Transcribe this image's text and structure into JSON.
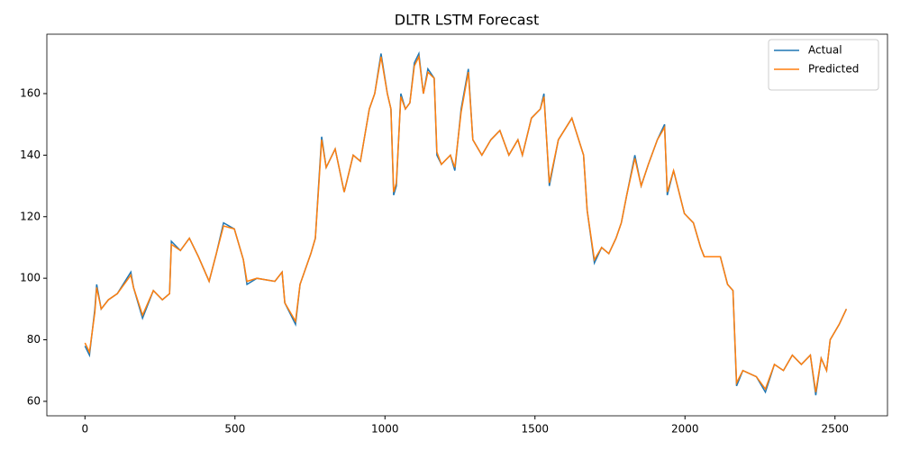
{
  "chart_data": {
    "type": "line",
    "title": "DLTR LSTM Forecast",
    "x": [
      0,
      15,
      33,
      39,
      54,
      78,
      108,
      153,
      162,
      192,
      228,
      258,
      282,
      288,
      318,
      348,
      378,
      414,
      438,
      462,
      498,
      528,
      540,
      573,
      633,
      657,
      666,
      702,
      717,
      753,
      768,
      780,
      789,
      804,
      834,
      864,
      894,
      918,
      948,
      966,
      987,
      1008,
      1020,
      1029,
      1038,
      1053,
      1068,
      1083,
      1098,
      1113,
      1128,
      1143,
      1164,
      1173,
      1188,
      1218,
      1233,
      1254,
      1278,
      1293,
      1323,
      1353,
      1383,
      1413,
      1443,
      1458,
      1488,
      1518,
      1530,
      1548,
      1578,
      1623,
      1662,
      1674,
      1698,
      1722,
      1746,
      1770,
      1788,
      1806,
      1833,
      1854,
      1878,
      1908,
      1932,
      1941,
      1962,
      1998,
      2028,
      2052,
      2064,
      2118,
      2142,
      2160,
      2172,
      2193,
      2238,
      2268,
      2298,
      2328,
      2358,
      2388,
      2418,
      2436,
      2454,
      2472,
      2484,
      2514,
      2538
    ],
    "series": [
      {
        "name": "Actual",
        "color": "#1f77b4",
        "values": [
          78,
          75,
          90,
          98,
          90,
          93,
          95,
          102,
          97,
          87,
          96,
          93,
          95,
          112,
          109,
          113,
          107,
          99,
          108,
          118,
          116,
          106,
          98,
          100,
          99,
          102,
          92,
          85,
          98,
          108,
          113,
          132,
          146,
          136,
          142,
          128,
          140,
          138,
          155,
          160,
          173,
          160,
          155,
          127,
          130,
          160,
          155,
          157,
          170,
          173,
          160,
          168,
          165,
          140,
          137,
          140,
          135,
          155,
          168,
          145,
          140,
          145,
          148,
          140,
          145,
          140,
          152,
          155,
          160,
          130,
          145,
          152,
          140,
          122,
          105,
          110,
          108,
          113,
          118,
          127,
          140,
          130,
          137,
          145,
          150,
          127,
          135,
          121,
          118,
          110,
          107,
          107,
          98,
          96,
          65,
          70,
          68,
          63,
          72,
          70,
          75,
          72,
          75,
          62,
          74,
          70,
          80,
          85,
          90
        ]
      },
      {
        "name": "Predicted",
        "color": "#ff7f0e",
        "values": [
          79,
          76,
          89,
          97,
          90,
          93,
          95,
          101,
          97,
          88,
          96,
          93,
          95,
          111,
          109,
          113,
          107,
          99,
          108,
          117,
          116,
          106,
          99,
          100,
          99,
          102,
          92,
          86,
          98,
          108,
          113,
          131,
          145,
          136,
          142,
          128,
          140,
          138,
          155,
          160,
          172,
          160,
          155,
          128,
          131,
          159,
          155,
          157,
          169,
          172,
          160,
          167,
          165,
          141,
          137,
          140,
          136,
          154,
          167,
          145,
          140,
          145,
          148,
          140,
          145,
          140,
          152,
          155,
          159,
          131,
          145,
          152,
          140,
          122,
          106,
          110,
          108,
          113,
          118,
          127,
          139,
          130,
          137,
          145,
          149,
          128,
          135,
          121,
          118,
          110,
          107,
          107,
          98,
          96,
          66,
          70,
          68,
          64,
          72,
          70,
          75,
          72,
          75,
          63,
          74,
          70,
          80,
          85,
          90
        ]
      }
    ],
    "xlim": [
      -127,
      2675
    ],
    "ylim": [
      55.3,
      179.3
    ],
    "xticks": [
      0,
      500,
      1000,
      1500,
      2000,
      2500
    ],
    "yticks": [
      60,
      80,
      100,
      120,
      140,
      160
    ],
    "legend": "upper right"
  }
}
